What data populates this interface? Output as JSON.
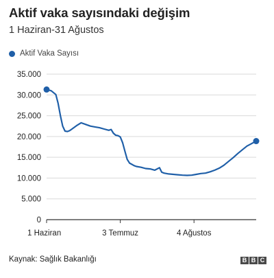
{
  "header": {
    "title": "Aktif vaka sayısındaki değişim",
    "subtitle": "1 Haziran-31 Ağustos"
  },
  "footer": {
    "source": "Kaynak: Sağlık Bakanlığı",
    "logo_letters": [
      "B",
      "B",
      "C"
    ]
  },
  "colors": {
    "series": "#1f5fa8",
    "grid": "#d9d9d9",
    "axis": "#333333",
    "text": "#222222"
  },
  "chart_data": {
    "type": "line",
    "title": "Aktif vaka sayısındaki değişim",
    "subtitle": "1 Haziran-31 Ağustos",
    "xlabel": "",
    "ylabel": "",
    "ylim": [
      0,
      35000
    ],
    "yticks": [
      0,
      5000,
      10000,
      15000,
      20000,
      25000,
      30000,
      35000
    ],
    "ytick_labels": [
      "0",
      "5.000",
      "10.000",
      "15.000",
      "20.000",
      "25.000",
      "30.000",
      "35.000"
    ],
    "xlim": [
      1,
      92
    ],
    "xticks": [
      1,
      33,
      65
    ],
    "xtick_labels": [
      "1 Haziran",
      "3 Temmuz",
      "4 Ağustos"
    ],
    "grid": true,
    "legend_position": "top-left",
    "series": [
      {
        "name": "Aktif Vaka Sayısı",
        "x": [
          1,
          3,
          5,
          6,
          7,
          8,
          9,
          10,
          11,
          12,
          14,
          16,
          18,
          20,
          22,
          24,
          26,
          28,
          29,
          30,
          31,
          32,
          33,
          34,
          35,
          36,
          37,
          38,
          39,
          40,
          42,
          44,
          46,
          48,
          50,
          51,
          52,
          53,
          54,
          56,
          58,
          60,
          62,
          64,
          66,
          68,
          70,
          72,
          74,
          76,
          78,
          80,
          82,
          84,
          86,
          88,
          90,
          92
        ],
        "values": [
          31300,
          31000,
          30100,
          28000,
          25000,
          22500,
          21300,
          21200,
          21400,
          21800,
          22600,
          23300,
          22900,
          22500,
          22300,
          22100,
          21800,
          21500,
          21700,
          20800,
          20300,
          20200,
          19900,
          18500,
          16500,
          14500,
          13600,
          13300,
          13000,
          12800,
          12600,
          12300,
          12200,
          11900,
          12500,
          11400,
          11200,
          11100,
          11000,
          10900,
          10800,
          10700,
          10650,
          10700,
          10900,
          11100,
          11200,
          11500,
          11900,
          12400,
          13100,
          14000,
          14900,
          15900,
          16800,
          17700,
          18300,
          18900
        ]
      }
    ]
  }
}
